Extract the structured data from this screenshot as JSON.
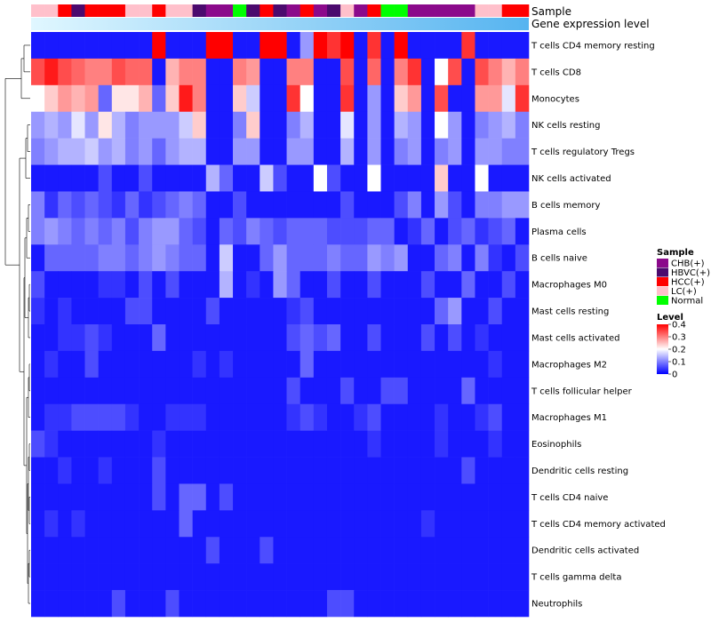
{
  "chart_data": {
    "type": "heatmap",
    "annotations": {
      "sample_label": "Sample",
      "level_label": "Gene expression level"
    },
    "rows": [
      "T cells CD4 memory resting",
      "T cells CD8",
      "Monocytes",
      "NK cells resting",
      "T cells regulatory  Tregs",
      "NK cells activated",
      "B cells memory",
      "Plasma cells",
      "B cells naive",
      "Macrophages M0",
      "Mast cells resting",
      "Mast cells activated",
      "Macrophages M2",
      "T cells follicular helper",
      "Macrophages M1",
      "Eosinophils",
      "Dendritic cells resting",
      "T cells CD4 naive",
      "T cells CD4 memory activated",
      "Dendritic cells activated",
      "T cells gamma delta",
      "Neutrophils"
    ],
    "sample_groups": [
      "LC(+)",
      "LC(+)",
      "HCC(+)",
      "HBVC(+)",
      "HCC(+)",
      "HCC(+)",
      "HCC(+)",
      "LC(+)",
      "LC(+)",
      "HCC(+)",
      "LC(+)",
      "LC(+)",
      "HBVC(+)",
      "CHB(+)",
      "CHB(+)",
      "Normal",
      "HBVC(+)",
      "HCC(+)",
      "HBVC(+)",
      "CHB(+)",
      "HCC(+)",
      "CHB(+)",
      "HBVC(+)",
      "LC(+)",
      "CHB(+)",
      "HCC(+)",
      "Normal",
      "Normal",
      "CHB(+)",
      "CHB(+)",
      "CHB(+)",
      "CHB(+)",
      "CHB(+)",
      "LC(+)",
      "LC(+)",
      "HCC(+)",
      "HCC(+)"
    ],
    "values": [
      [
        0.02,
        0.02,
        0.02,
        0.02,
        0.02,
        0.02,
        0.02,
        0.02,
        0.02,
        0.4,
        0.02,
        0.02,
        0.02,
        0.4,
        0.4,
        0.02,
        0.02,
        0.4,
        0.4,
        0.02,
        0.12,
        0.4,
        0.36,
        0.4,
        0.02,
        0.36,
        0.02,
        0.4,
        0.02,
        0.02,
        0.02,
        0.02,
        0.36,
        0.02,
        0.02,
        0.02,
        0.02
      ],
      [
        0.34,
        0.38,
        0.34,
        0.32,
        0.3,
        0.3,
        0.34,
        0.32,
        0.32,
        0.02,
        0.26,
        0.3,
        0.3,
        0.02,
        0.02,
        0.3,
        0.28,
        0.02,
        0.02,
        0.3,
        0.3,
        0.02,
        0.02,
        0.34,
        0.02,
        0.32,
        0.02,
        0.3,
        0.36,
        0.02,
        0.2,
        0.34,
        0.02,
        0.34,
        0.3,
        0.26,
        0.3
      ],
      [
        0.2,
        0.24,
        0.28,
        0.26,
        0.28,
        0.08,
        0.22,
        0.22,
        0.26,
        0.08,
        0.24,
        0.38,
        0.3,
        0.02,
        0.02,
        0.24,
        0.16,
        0.02,
        0.02,
        0.36,
        0.2,
        0.02,
        0.02,
        0.36,
        0.02,
        0.12,
        0.02,
        0.24,
        0.28,
        0.02,
        0.34,
        0.02,
        0.02,
        0.28,
        0.28,
        0.18,
        0.36
      ],
      [
        0.12,
        0.14,
        0.12,
        0.18,
        0.12,
        0.22,
        0.14,
        0.1,
        0.12,
        0.12,
        0.12,
        0.16,
        0.24,
        0.02,
        0.02,
        0.1,
        0.24,
        0.02,
        0.02,
        0.1,
        0.14,
        0.02,
        0.02,
        0.18,
        0.02,
        0.12,
        0.02,
        0.14,
        0.12,
        0.02,
        0.2,
        0.12,
        0.02,
        0.1,
        0.12,
        0.14,
        0.1
      ],
      [
        0.1,
        0.12,
        0.14,
        0.14,
        0.16,
        0.12,
        0.14,
        0.1,
        0.12,
        0.08,
        0.12,
        0.14,
        0.14,
        0.02,
        0.02,
        0.12,
        0.12,
        0.02,
        0.02,
        0.12,
        0.12,
        0.02,
        0.02,
        0.14,
        0.02,
        0.12,
        0.02,
        0.1,
        0.12,
        0.02,
        0.1,
        0.12,
        0.02,
        0.12,
        0.12,
        0.1,
        0.1
      ],
      [
        0.02,
        0.02,
        0.02,
        0.02,
        0.02,
        0.06,
        0.02,
        0.02,
        0.06,
        0.02,
        0.02,
        0.02,
        0.02,
        0.14,
        0.08,
        0.02,
        0.02,
        0.16,
        0.06,
        0.02,
        0.02,
        0.2,
        0.06,
        0.02,
        0.02,
        0.2,
        0.02,
        0.02,
        0.02,
        0.02,
        0.24,
        0.02,
        0.02,
        0.2,
        0.02,
        0.02,
        0.02
      ],
      [
        0.1,
        0.04,
        0.08,
        0.06,
        0.08,
        0.06,
        0.04,
        0.08,
        0.04,
        0.06,
        0.08,
        0.1,
        0.08,
        0.02,
        0.02,
        0.06,
        0.02,
        0.02,
        0.02,
        0.02,
        0.02,
        0.02,
        0.02,
        0.06,
        0.02,
        0.02,
        0.02,
        0.06,
        0.1,
        0.02,
        0.12,
        0.06,
        0.02,
        0.1,
        0.1,
        0.12,
        0.12
      ],
      [
        0.1,
        0.12,
        0.1,
        0.08,
        0.1,
        0.08,
        0.1,
        0.06,
        0.1,
        0.12,
        0.12,
        0.08,
        0.06,
        0.02,
        0.08,
        0.06,
        0.1,
        0.08,
        0.06,
        0.08,
        0.08,
        0.08,
        0.06,
        0.06,
        0.06,
        0.08,
        0.08,
        0.02,
        0.04,
        0.08,
        0.02,
        0.06,
        0.08,
        0.04,
        0.06,
        0.08,
        0.02
      ],
      [
        0.02,
        0.08,
        0.08,
        0.08,
        0.08,
        0.1,
        0.1,
        0.08,
        0.1,
        0.12,
        0.1,
        0.08,
        0.08,
        0.02,
        0.16,
        0.02,
        0.02,
        0.08,
        0.12,
        0.08,
        0.08,
        0.08,
        0.1,
        0.08,
        0.08,
        0.12,
        0.1,
        0.12,
        0.02,
        0.02,
        0.08,
        0.1,
        0.02,
        0.1,
        0.04,
        0.02,
        0.06
      ],
      [
        0.06,
        0.02,
        0.02,
        0.02,
        0.02,
        0.04,
        0.04,
        0.02,
        0.06,
        0.02,
        0.06,
        0.02,
        0.02,
        0.02,
        0.14,
        0.02,
        0.04,
        0.02,
        0.12,
        0.08,
        0.02,
        0.02,
        0.06,
        0.02,
        0.02,
        0.06,
        0.02,
        0.02,
        0.02,
        0.06,
        0.02,
        0.02,
        0.08,
        0.02,
        0.02,
        0.06,
        0.02
      ],
      [
        0.04,
        0.02,
        0.04,
        0.02,
        0.02,
        0.02,
        0.02,
        0.06,
        0.06,
        0.02,
        0.02,
        0.02,
        0.02,
        0.06,
        0.02,
        0.02,
        0.02,
        0.02,
        0.02,
        0.04,
        0.06,
        0.02,
        0.02,
        0.02,
        0.02,
        0.02,
        0.02,
        0.02,
        0.02,
        0.02,
        0.08,
        0.12,
        0.02,
        0.02,
        0.06,
        0.02,
        0.02
      ],
      [
        0.02,
        0.02,
        0.04,
        0.04,
        0.06,
        0.04,
        0.02,
        0.02,
        0.02,
        0.08,
        0.02,
        0.02,
        0.02,
        0.02,
        0.02,
        0.02,
        0.02,
        0.02,
        0.02,
        0.06,
        0.08,
        0.06,
        0.08,
        0.02,
        0.02,
        0.06,
        0.02,
        0.02,
        0.02,
        0.06,
        0.02,
        0.06,
        0.02,
        0.04,
        0.02,
        0.02,
        0.02
      ],
      [
        0.02,
        0.04,
        0.02,
        0.02,
        0.06,
        0.02,
        0.02,
        0.02,
        0.02,
        0.02,
        0.02,
        0.02,
        0.04,
        0.02,
        0.04,
        0.02,
        0.02,
        0.02,
        0.02,
        0.02,
        0.08,
        0.02,
        0.02,
        0.02,
        0.02,
        0.02,
        0.02,
        0.02,
        0.02,
        0.02,
        0.02,
        0.02,
        0.02,
        0.02,
        0.04,
        0.02,
        0.02
      ],
      [
        0.02,
        0.02,
        0.02,
        0.02,
        0.02,
        0.02,
        0.02,
        0.02,
        0.02,
        0.02,
        0.02,
        0.02,
        0.02,
        0.02,
        0.02,
        0.02,
        0.02,
        0.02,
        0.02,
        0.06,
        0.02,
        0.02,
        0.02,
        0.06,
        0.02,
        0.02,
        0.06,
        0.06,
        0.02,
        0.02,
        0.02,
        0.02,
        0.08,
        0.02,
        0.02,
        0.02,
        0.02
      ],
      [
        0.02,
        0.04,
        0.04,
        0.06,
        0.06,
        0.06,
        0.06,
        0.04,
        0.02,
        0.02,
        0.04,
        0.04,
        0.04,
        0.02,
        0.02,
        0.02,
        0.02,
        0.02,
        0.02,
        0.04,
        0.06,
        0.04,
        0.02,
        0.02,
        0.04,
        0.06,
        0.02,
        0.02,
        0.02,
        0.02,
        0.04,
        0.02,
        0.02,
        0.04,
        0.06,
        0.02,
        0.02
      ],
      [
        0.06,
        0.04,
        0.02,
        0.02,
        0.02,
        0.02,
        0.02,
        0.02,
        0.02,
        0.04,
        0.02,
        0.02,
        0.02,
        0.02,
        0.02,
        0.02,
        0.02,
        0.02,
        0.02,
        0.02,
        0.02,
        0.02,
        0.02,
        0.02,
        0.02,
        0.04,
        0.02,
        0.02,
        0.02,
        0.02,
        0.04,
        0.02,
        0.02,
        0.02,
        0.04,
        0.02,
        0.02
      ],
      [
        0.02,
        0.02,
        0.04,
        0.02,
        0.02,
        0.04,
        0.02,
        0.02,
        0.02,
        0.06,
        0.02,
        0.02,
        0.02,
        0.02,
        0.02,
        0.02,
        0.02,
        0.02,
        0.02,
        0.02,
        0.02,
        0.02,
        0.02,
        0.02,
        0.02,
        0.02,
        0.02,
        0.02,
        0.02,
        0.02,
        0.02,
        0.02,
        0.06,
        0.02,
        0.02,
        0.02,
        0.02
      ],
      [
        0.02,
        0.02,
        0.02,
        0.02,
        0.02,
        0.02,
        0.02,
        0.02,
        0.02,
        0.06,
        0.02,
        0.08,
        0.08,
        0.02,
        0.06,
        0.02,
        0.02,
        0.02,
        0.02,
        0.02,
        0.02,
        0.02,
        0.02,
        0.02,
        0.02,
        0.02,
        0.02,
        0.02,
        0.02,
        0.02,
        0.02,
        0.02,
        0.02,
        0.02,
        0.02,
        0.02,
        0.02
      ],
      [
        0.02,
        0.04,
        0.02,
        0.04,
        0.02,
        0.02,
        0.02,
        0.02,
        0.02,
        0.02,
        0.02,
        0.08,
        0.02,
        0.02,
        0.02,
        0.02,
        0.02,
        0.02,
        0.02,
        0.02,
        0.02,
        0.02,
        0.02,
        0.02,
        0.02,
        0.02,
        0.02,
        0.02,
        0.02,
        0.04,
        0.02,
        0.02,
        0.02,
        0.02,
        0.02,
        0.02,
        0.02
      ],
      [
        0.02,
        0.02,
        0.02,
        0.02,
        0.02,
        0.02,
        0.02,
        0.02,
        0.02,
        0.02,
        0.02,
        0.02,
        0.02,
        0.06,
        0.02,
        0.02,
        0.02,
        0.06,
        0.02,
        0.02,
        0.02,
        0.02,
        0.02,
        0.02,
        0.02,
        0.02,
        0.02,
        0.02,
        0.02,
        0.02,
        0.02,
        0.02,
        0.02,
        0.02,
        0.02,
        0.02,
        0.02
      ],
      [
        0.02,
        0.02,
        0.02,
        0.02,
        0.02,
        0.02,
        0.02,
        0.02,
        0.02,
        0.02,
        0.02,
        0.02,
        0.02,
        0.02,
        0.02,
        0.02,
        0.02,
        0.02,
        0.02,
        0.02,
        0.02,
        0.02,
        0.02,
        0.02,
        0.02,
        0.02,
        0.02,
        0.02,
        0.02,
        0.02,
        0.02,
        0.02,
        0.02,
        0.02,
        0.02,
        0.02,
        0.02
      ],
      [
        0.02,
        0.02,
        0.02,
        0.02,
        0.02,
        0.02,
        0.06,
        0.02,
        0.02,
        0.02,
        0.06,
        0.02,
        0.02,
        0.02,
        0.02,
        0.02,
        0.02,
        0.02,
        0.02,
        0.02,
        0.02,
        0.02,
        0.06,
        0.06,
        0.02,
        0.02,
        0.02,
        0.02,
        0.02,
        0.02,
        0.02,
        0.02,
        0.02,
        0.02,
        0.02,
        0.02,
        0.02
      ]
    ],
    "legend": {
      "sample_title": "Sample",
      "level_title": "Level",
      "level_ticks": [
        0.4,
        0.3,
        0.2,
        0.1,
        0
      ],
      "level_tick_labels": [
        "0.4",
        "0.3",
        "0.2",
        "0.1",
        "0"
      ],
      "level_range": [
        0,
        0.4
      ]
    }
  },
  "legend_groups": [
    {
      "name": "CHB(+)",
      "color": "#8B0A8B"
    },
    {
      "name": "HBVC(+)",
      "color": "#4B0A6E"
    },
    {
      "name": "HCC(+)",
      "color": "#FF0000"
    },
    {
      "name": "LC(+)",
      "color": "#FFC0CB"
    },
    {
      "name": "Normal",
      "color": "#00FF00"
    }
  ],
  "colors": {
    "low": "#0000FF",
    "mid": "#FFFFFF",
    "high": "#FF0000",
    "level_bar_start": "#E0F7FF",
    "level_bar_end": "#56B4F0",
    "dendrogram": "#000000"
  }
}
